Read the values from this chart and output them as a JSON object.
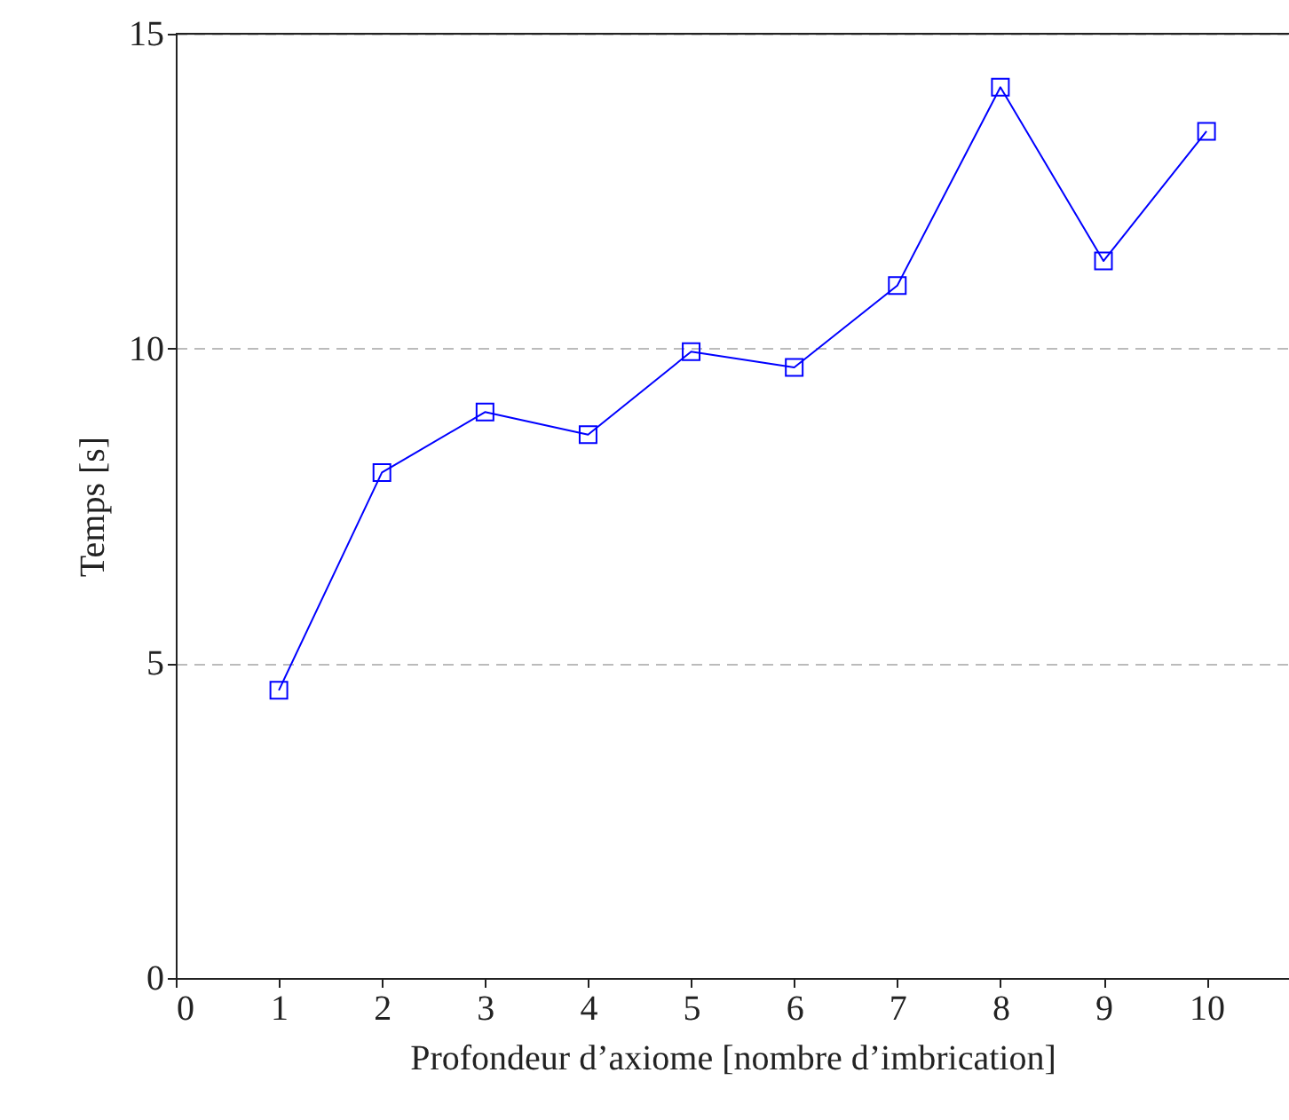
{
  "chart_data": {
    "type": "line",
    "xlabel": "Profondeur d’axiome [nombre d’imbrication]",
    "ylabel": "Temps [s]",
    "x": [
      1,
      2,
      3,
      4,
      5,
      6,
      7,
      8,
      9,
      10
    ],
    "series": [
      {
        "color": "#0000ff",
        "values": [
          4.57,
          8.03,
          8.99,
          8.63,
          9.95,
          9.7,
          11.0,
          14.15,
          11.39,
          13.45
        ]
      }
    ],
    "xlim": [
      0,
      10.8
    ],
    "xticks": [
      0,
      1,
      2,
      3,
      4,
      5,
      6,
      7,
      8,
      9,
      10
    ],
    "ylim": [
      0,
      15
    ],
    "yticks": [
      0,
      5,
      10,
      15
    ],
    "grid": "y",
    "marker": "square",
    "line_style": "solid"
  }
}
